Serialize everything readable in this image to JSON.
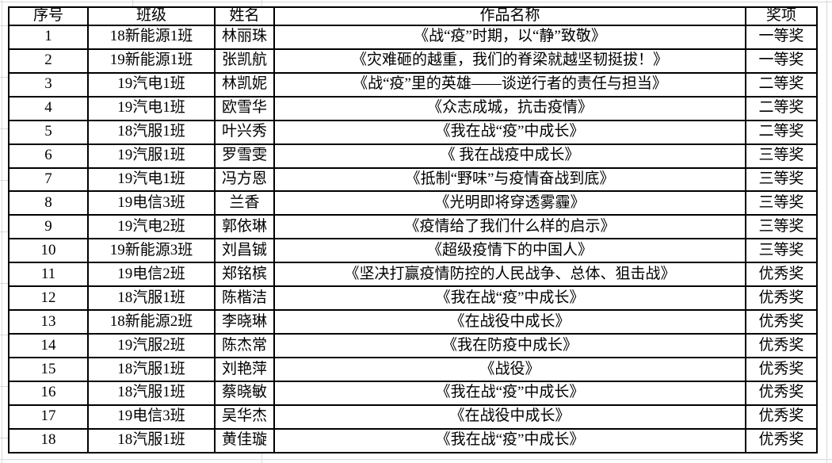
{
  "table": {
    "headers": [
      "序号",
      "班级",
      "姓名",
      "作品名称",
      "奖项"
    ],
    "rows": [
      [
        "1",
        "18新能源1班",
        "林丽珠",
        "《战“疫”时期，以“静”致敬》",
        "一等奖"
      ],
      [
        "2",
        "19新能源1班",
        "张凯航",
        "《灾难砸的越重，我们的脊梁就越坚韧挺拔！》",
        "一等奖"
      ],
      [
        "3",
        "19汽电1班",
        "林凯妮",
        "《战“疫”里的英雄——谈逆行者的责任与担当》",
        "二等奖"
      ],
      [
        "4",
        "19汽电1班",
        "欧雪华",
        "《众志成城，抗击疫情》",
        "二等奖"
      ],
      [
        "5",
        "18汽服1班",
        "叶兴秀",
        "《我在战“疫”中成长》",
        "二等奖"
      ],
      [
        "6",
        "19汽服1班",
        "罗雪雯",
        "《 我在战疫中成长》",
        "三等奖"
      ],
      [
        "7",
        "19汽电1班",
        "冯方恩",
        "《抵制“野味”与疫情奋战到底》",
        "三等奖"
      ],
      [
        "8",
        "19电信3班",
        "兰香",
        "《光明即将穿透雾霾》",
        "三等奖"
      ],
      [
        "9",
        "19汽电2班",
        "郭依琳",
        "《疫情给了我们什么样的启示》",
        "三等奖"
      ],
      [
        "10",
        "19新能源3班",
        "刘昌铖",
        "《超级疫情下的中国人》",
        "三等奖"
      ],
      [
        "11",
        "19电信2班",
        "郑铭槟",
        "《坚决打赢疫情防控的人民战争、总体、狙击战》",
        "优秀奖"
      ],
      [
        "12",
        "18汽服1班",
        "陈楷洁",
        "《我在战“疫”中成长》",
        "优秀奖"
      ],
      [
        "13",
        "18新能源2班",
        "李晓琳",
        "《在战役中成长》",
        "优秀奖"
      ],
      [
        "14",
        "19汽服2班",
        "陈杰常",
        "《我在防疫中成长》",
        "优秀奖"
      ],
      [
        "15",
        "18汽服1班",
        "刘艳萍",
        "《战役》",
        "优秀奖"
      ],
      [
        "16",
        "18汽服1班",
        "蔡晓敏",
        "《我在战“疫”中成长》",
        "优秀奖"
      ],
      [
        "17",
        "19电信3班",
        "吴华杰",
        "《在战役中成长》",
        "优秀奖"
      ],
      [
        "18",
        "18汽服1班",
        "黄佳璇",
        "《我在战“疫”中成长》",
        "优秀奖"
      ]
    ]
  },
  "colors": {
    "table_border": "#000000",
    "text": "#000000",
    "background": "#ffffff",
    "gridline": "#d9d9d9"
  }
}
